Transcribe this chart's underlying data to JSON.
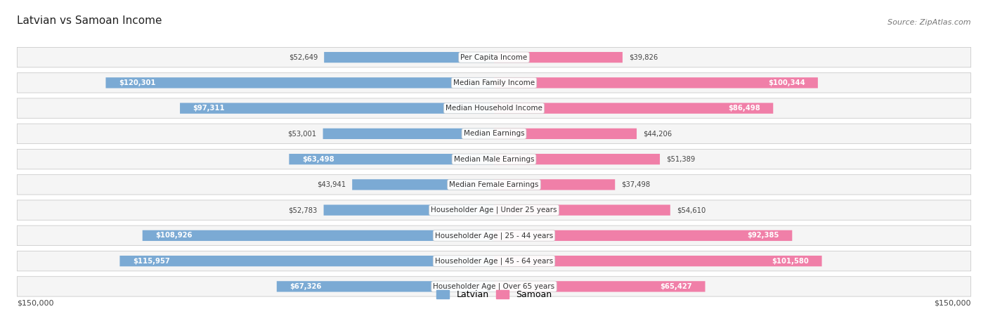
{
  "title": "Latvian vs Samoan Income",
  "source": "Source: ZipAtlas.com",
  "categories": [
    "Per Capita Income",
    "Median Family Income",
    "Median Household Income",
    "Median Earnings",
    "Median Male Earnings",
    "Median Female Earnings",
    "Householder Age | Under 25 years",
    "Householder Age | 25 - 44 years",
    "Householder Age | 45 - 64 years",
    "Householder Age | Over 65 years"
  ],
  "latvian_values": [
    52649,
    120301,
    97311,
    53001,
    63498,
    43941,
    52783,
    108926,
    115957,
    67326
  ],
  "samoan_values": [
    39826,
    100344,
    86498,
    44206,
    51389,
    37498,
    54610,
    92385,
    101580,
    65427
  ],
  "latvian_labels": [
    "$52,649",
    "$120,301",
    "$97,311",
    "$53,001",
    "$63,498",
    "$43,941",
    "$52,783",
    "$108,926",
    "$115,957",
    "$67,326"
  ],
  "samoan_labels": [
    "$39,826",
    "$100,344",
    "$86,498",
    "$44,206",
    "$51,389",
    "$37,498",
    "$54,610",
    "$92,385",
    "$101,580",
    "$65,427"
  ],
  "latvian_color": "#7baad4",
  "samoan_color": "#f07fa8",
  "max_value": 150000,
  "background_color": "#ffffff",
  "row_bg_odd": "#f7f7f7",
  "row_bg_even": "#eeeeee",
  "title_fontsize": 11,
  "source_fontsize": 8,
  "label_fontsize": 7.5,
  "value_fontsize": 7.2,
  "legend_latvian": "Latvian",
  "legend_samoan": "Samoan",
  "xlabel_left": "$150,000",
  "xlabel_right": "$150,000",
  "white_text_threshold": 55000
}
